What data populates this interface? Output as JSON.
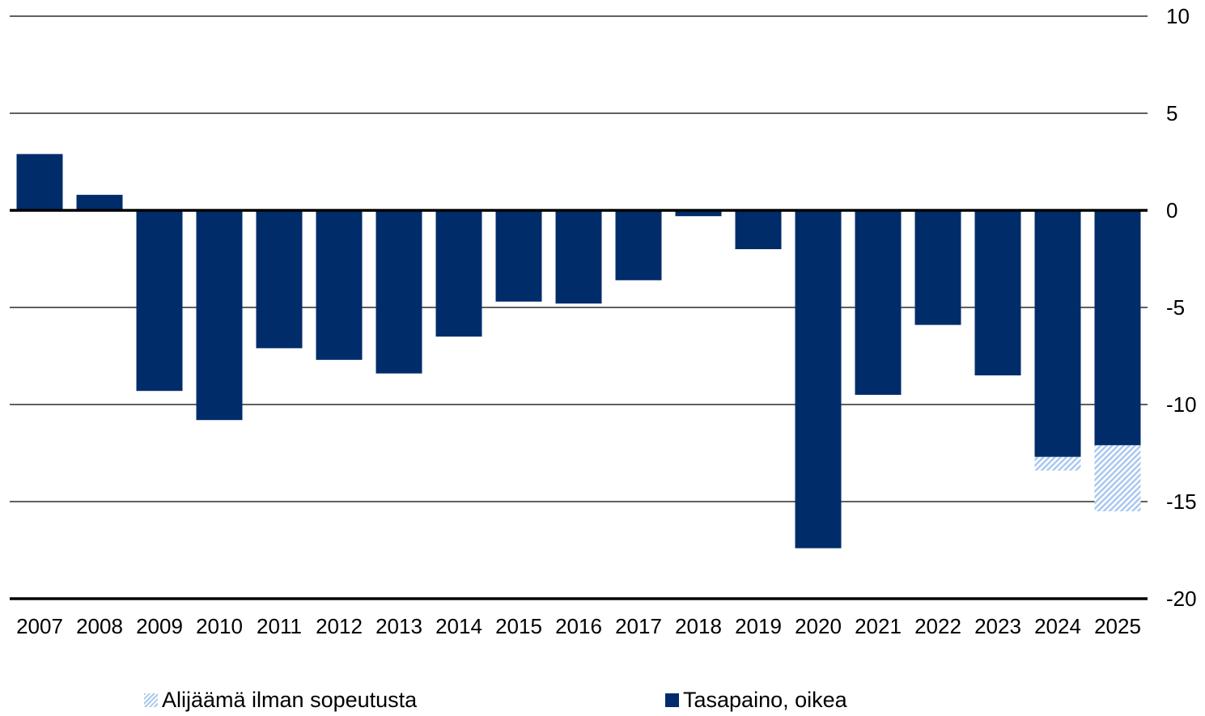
{
  "chart_data": {
    "type": "bar",
    "stacked": true,
    "categories": [
      "2007",
      "2008",
      "2009",
      "2010",
      "2011",
      "2012",
      "2013",
      "2014",
      "2015",
      "2016",
      "2017",
      "2018",
      "2019",
      "2020",
      "2021",
      "2022",
      "2023",
      "2024",
      "2025"
    ],
    "series": [
      {
        "name": "Tasapaino, oikea",
        "color": "#002c6a",
        "values": [
          2.9,
          0.8,
          -9.3,
          -10.8,
          -7.1,
          -7.7,
          -8.4,
          -6.5,
          -4.7,
          -4.8,
          -3.6,
          -0.3,
          -2.0,
          -17.4,
          -9.5,
          -5.9,
          -8.5,
          -12.7,
          -12.1
        ]
      },
      {
        "name": "Alijäämä ilman sopeutusta",
        "color": "#a9c8ef",
        "pattern": "hatched",
        "values": [
          0,
          0,
          0,
          0,
          0,
          0,
          0,
          0,
          0,
          0,
          0,
          0,
          0,
          0,
          0,
          0,
          0,
          -0.7,
          -3.4
        ]
      }
    ],
    "y_axis": {
      "position": "right",
      "ylim": [
        -20,
        10
      ],
      "ticks": [
        10,
        5,
        0,
        -5,
        -10,
        -15,
        -20
      ],
      "tick_labels": [
        "10",
        "5",
        "0",
        "-5",
        "-10",
        "-15",
        "-20"
      ]
    },
    "grid": true,
    "legend_placement": "bottom"
  },
  "legend": {
    "items": [
      {
        "label": "Alijäämä ilman sopeutusta",
        "icon": "hatched-square-icon"
      },
      {
        "label": "Tasapaino, oikea",
        "icon": "solid-square-icon"
      }
    ]
  }
}
